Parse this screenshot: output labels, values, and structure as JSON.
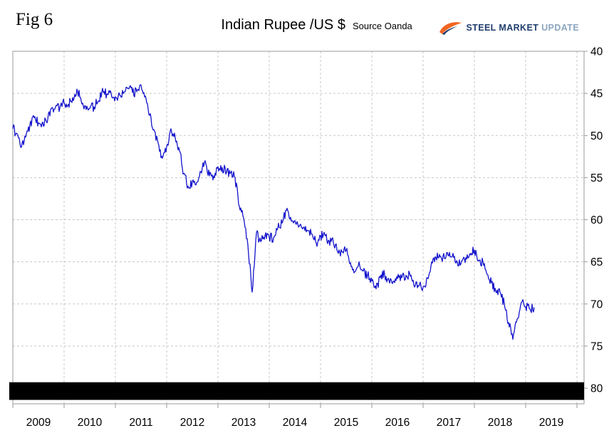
{
  "figure_label": "Fig 6",
  "header": {
    "title": "Indian Rupee /US $",
    "source": "Source Oanda"
  },
  "logo": {
    "word1": "STEEL",
    "word2": "MARKET",
    "word3": "UPDATE",
    "orange": "#F26522",
    "navy": "#203E6E",
    "light_blue": "#8CA6C0"
  },
  "chart_data": {
    "type": "line",
    "title": "Indian Rupee /US $",
    "source": "Source Oanda",
    "y_unit": "INR per USD",
    "y_axis_side": "right",
    "y_inverted": true,
    "grid": "dashed",
    "legend": "none",
    "line_color": "#1414CC",
    "x_start": 2009,
    "x_tick_labels": [
      "2009",
      "2010",
      "2011",
      "2012",
      "2013",
      "2014",
      "2015",
      "2016",
      "2017",
      "2018",
      "2019"
    ],
    "y_ticks": [
      40,
      45,
      50,
      55,
      60,
      65,
      70,
      75,
      80
    ],
    "black_bar": {
      "from_value": 79.3,
      "to_value": 81.4
    },
    "series": [
      {
        "name": "INR per US$",
        "interval": "monthly",
        "start": "2009-01",
        "values": [
          49.2,
          49.8,
          51.4,
          50.2,
          48.7,
          47.9,
          48.5,
          48.4,
          48.5,
          46.8,
          46.6,
          46.7,
          46.1,
          46.3,
          45.5,
          44.5,
          45.9,
          46.5,
          46.8,
          46.6,
          45.9,
          44.4,
          45.1,
          45.0,
          45.4,
          45.2,
          44.9,
          44.4,
          44.9,
          44.8,
          44.0,
          45.3,
          47.6,
          49.3,
          50.9,
          52.7,
          51.3,
          49.2,
          50.3,
          51.8,
          54.5,
          56.0,
          55.5,
          55.6,
          54.3,
          53.0,
          54.8,
          54.8,
          53.7,
          53.8,
          54.4,
          54.4,
          55.0,
          58.4,
          59.8,
          63.0,
          68.6,
          61.6,
          62.6,
          61.9,
          62.1,
          62.2,
          61.0,
          60.4,
          58.9,
          59.7,
          60.1,
          60.8,
          60.9,
          61.3,
          61.7,
          62.8,
          61.9,
          61.8,
          62.5,
          62.7,
          63.8,
          63.8,
          63.6,
          65.1,
          66.2,
          65.0,
          66.1,
          66.6,
          67.3,
          68.2,
          66.9,
          66.5,
          67.2,
          67.3,
          67.0,
          66.9,
          66.6,
          66.7,
          68.0,
          67.9,
          68.0,
          66.9,
          65.0,
          64.5,
          64.4,
          64.6,
          64.3,
          64.0,
          65.0,
          64.9,
          64.5,
          64.0,
          63.6,
          64.8,
          65.0,
          66.5,
          67.5,
          68.5,
          68.6,
          70.0,
          72.2,
          74.2,
          71.8,
          69.8,
          70.3,
          70.6,
          70.4
        ]
      }
    ]
  }
}
